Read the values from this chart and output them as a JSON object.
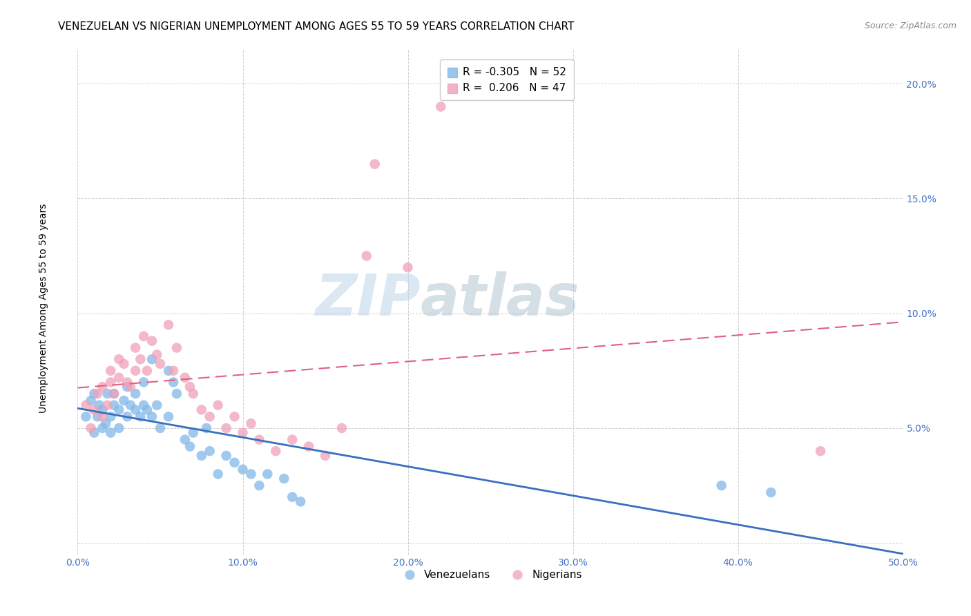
{
  "title": "VENEZUELAN VS NIGERIAN UNEMPLOYMENT AMONG AGES 55 TO 59 YEARS CORRELATION CHART",
  "source": "Source: ZipAtlas.com",
  "ylabel": "Unemployment Among Ages 55 to 59 years",
  "watermark_zip": "ZIP",
  "watermark_atlas": "atlas",
  "xlim": [
    0.0,
    0.5
  ],
  "ylim": [
    -0.005,
    0.215
  ],
  "xticks": [
    0.0,
    0.1,
    0.2,
    0.3,
    0.4,
    0.5
  ],
  "xticklabels": [
    "0.0%",
    "10.0%",
    "20.0%",
    "30.0%",
    "40.0%",
    "50.0%"
  ],
  "yticks": [
    0.0,
    0.05,
    0.1,
    0.15,
    0.2
  ],
  "yticklabels": [
    "",
    "5.0%",
    "10.0%",
    "15.0%",
    "20.0%"
  ],
  "venezuelan_color": "#82b8e8",
  "nigerian_color": "#f0a0b8",
  "venezuelan_line_color": "#3a6fbf",
  "nigerian_line_color": "#e06080",
  "background_color": "#ffffff",
  "grid_color": "#cccccc",
  "venezuelan_x": [
    0.005,
    0.008,
    0.01,
    0.01,
    0.012,
    0.013,
    0.015,
    0.015,
    0.017,
    0.018,
    0.02,
    0.02,
    0.022,
    0.022,
    0.025,
    0.025,
    0.028,
    0.03,
    0.03,
    0.032,
    0.035,
    0.035,
    0.038,
    0.04,
    0.04,
    0.042,
    0.045,
    0.045,
    0.048,
    0.05,
    0.055,
    0.055,
    0.058,
    0.06,
    0.065,
    0.068,
    0.07,
    0.075,
    0.078,
    0.08,
    0.085,
    0.09,
    0.095,
    0.1,
    0.105,
    0.11,
    0.115,
    0.125,
    0.13,
    0.135,
    0.39,
    0.42
  ],
  "venezuelan_y": [
    0.055,
    0.062,
    0.048,
    0.065,
    0.055,
    0.06,
    0.05,
    0.058,
    0.052,
    0.065,
    0.048,
    0.055,
    0.06,
    0.065,
    0.05,
    0.058,
    0.062,
    0.055,
    0.068,
    0.06,
    0.065,
    0.058,
    0.055,
    0.06,
    0.07,
    0.058,
    0.08,
    0.055,
    0.06,
    0.05,
    0.075,
    0.055,
    0.07,
    0.065,
    0.045,
    0.042,
    0.048,
    0.038,
    0.05,
    0.04,
    0.03,
    0.038,
    0.035,
    0.032,
    0.03,
    0.025,
    0.03,
    0.028,
    0.02,
    0.018,
    0.025,
    0.022
  ],
  "nigerian_x": [
    0.005,
    0.008,
    0.01,
    0.012,
    0.015,
    0.015,
    0.018,
    0.02,
    0.02,
    0.022,
    0.025,
    0.025,
    0.028,
    0.03,
    0.032,
    0.035,
    0.035,
    0.038,
    0.04,
    0.042,
    0.045,
    0.048,
    0.05,
    0.055,
    0.058,
    0.06,
    0.065,
    0.068,
    0.07,
    0.075,
    0.08,
    0.085,
    0.09,
    0.095,
    0.1,
    0.105,
    0.11,
    0.12,
    0.13,
    0.14,
    0.15,
    0.16,
    0.175,
    0.18,
    0.2,
    0.22,
    0.45
  ],
  "nigerian_y": [
    0.06,
    0.05,
    0.058,
    0.065,
    0.055,
    0.068,
    0.06,
    0.07,
    0.075,
    0.065,
    0.08,
    0.072,
    0.078,
    0.07,
    0.068,
    0.075,
    0.085,
    0.08,
    0.09,
    0.075,
    0.088,
    0.082,
    0.078,
    0.095,
    0.075,
    0.085,
    0.072,
    0.068,
    0.065,
    0.058,
    0.055,
    0.06,
    0.05,
    0.055,
    0.048,
    0.052,
    0.045,
    0.04,
    0.045,
    0.042,
    0.038,
    0.05,
    0.125,
    0.165,
    0.12,
    0.19,
    0.04
  ],
  "legend_ven_label": "R = -0.305   N = 52",
  "legend_nig_label": "R =  0.206   N = 47",
  "bottom_legend_ven": "Venezuelans",
  "bottom_legend_nig": "Nigerians",
  "title_fontsize": 11,
  "axis_label_fontsize": 10,
  "tick_fontsize": 10,
  "legend_fontsize": 11,
  "source_fontsize": 9
}
